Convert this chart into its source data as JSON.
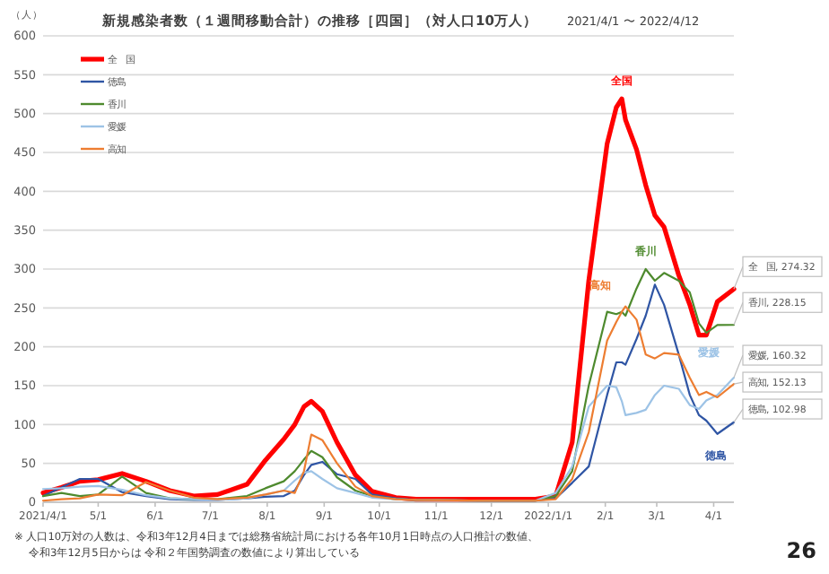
{
  "chart_data": {
    "type": "line",
    "title": "新規感染者数（１週間移動合計）の推移［四国］（対人口10万人）",
    "subtitle": "2021/4/1 〜 2022/4/12",
    "ylabel": "（人）",
    "x": [
      "2021-04-01",
      "2021-04-11",
      "2021-04-21",
      "2021-05-01",
      "2021-05-14",
      "2021-05-27",
      "2021-06-09",
      "2021-06-22",
      "2021-07-05",
      "2021-07-21",
      "2021-07-31",
      "2021-08-10",
      "2021-08-16",
      "2021-08-21",
      "2021-08-25",
      "2021-08-31",
      "2021-09-08",
      "2021-09-18",
      "2021-09-27",
      "2021-10-10",
      "2021-10-21",
      "2021-11-27",
      "2021-12-25",
      "2022-01-05",
      "2022-01-14",
      "2022-01-23",
      "2022-02-02",
      "2022-02-07",
      "2022-02-10",
      "2022-02-12",
      "2022-02-18",
      "2022-02-23",
      "2022-02-28",
      "2022-03-05",
      "2022-03-13",
      "2022-03-19",
      "2022-03-24",
      "2022-03-28",
      "2022-04-03",
      "2022-04-12"
    ],
    "xlim": [
      "2021-04-01",
      "2022-04-12"
    ],
    "xticks": [
      {
        "value": "2021-04-01",
        "label": "2021/4/1"
      },
      {
        "value": "2021-05-01",
        "label": "5/1"
      },
      {
        "value": "2021-06-01",
        "label": "6/1"
      },
      {
        "value": "2021-07-01",
        "label": "7/1"
      },
      {
        "value": "2021-08-01",
        "label": "8/1"
      },
      {
        "value": "2021-09-01",
        "label": "9/1"
      },
      {
        "value": "2021-10-01",
        "label": "10/1"
      },
      {
        "value": "2021-11-01",
        "label": "11/1"
      },
      {
        "value": "2021-12-01",
        "label": "12/1"
      },
      {
        "value": "2022-01-01",
        "label": "2022/1/1"
      },
      {
        "value": "2022-02-01",
        "label": "2/1"
      },
      {
        "value": "2022-03-01",
        "label": "3/1"
      },
      {
        "value": "2022-04-01",
        "label": "4/1"
      }
    ],
    "ylim": [
      0,
      600
    ],
    "yticks": [
      0,
      50,
      100,
      150,
      200,
      250,
      300,
      350,
      400,
      450,
      500,
      550,
      600
    ],
    "grid": "y",
    "legend": "top left",
    "series": [
      {
        "name": "全　国",
        "color": "#ff0000",
        "values": [
          12,
          19,
          27,
          29,
          37,
          27,
          15,
          8,
          10,
          23,
          54,
          81,
          100,
          123,
          130,
          117,
          77,
          35,
          14,
          6,
          4,
          4,
          4,
          8,
          77,
          285,
          461,
          508,
          519,
          492,
          454,
          408,
          369,
          354,
          292,
          254,
          215,
          215,
          258,
          274.32
        ],
        "value_labels": [
          null,
          null,
          null,
          null,
          null,
          null,
          null,
          null,
          null,
          null,
          null,
          null,
          null,
          null,
          null,
          null,
          null,
          null,
          null,
          null,
          null,
          null,
          null,
          null,
          null,
          null,
          null,
          null,
          null,
          null,
          null,
          null,
          null,
          null,
          null,
          null,
          null,
          null,
          null,
          "全　国, 274.32"
        ]
      },
      {
        "name": "徳島",
        "color": "#2f55a4",
        "values": [
          8,
          19,
          30,
          30,
          13,
          8,
          4,
          3,
          3,
          5,
          7,
          8,
          15,
          35,
          48,
          52,
          36,
          30,
          10,
          5,
          3,
          2,
          2,
          5,
          25,
          46,
          138,
          180,
          180,
          177,
          210,
          240,
          280,
          254,
          190,
          138,
          112,
          105,
          88,
          102.98
        ],
        "value_labels": [
          null,
          null,
          null,
          null,
          null,
          null,
          null,
          null,
          null,
          null,
          null,
          null,
          null,
          null,
          null,
          null,
          null,
          null,
          null,
          null,
          null,
          null,
          null,
          null,
          null,
          null,
          null,
          null,
          null,
          null,
          null,
          null,
          null,
          null,
          null,
          null,
          null,
          null,
          null,
          "徳島, 102.98"
        ]
      },
      {
        "name": "香川",
        "color": "#4e8a2e",
        "values": [
          8,
          12,
          8,
          10,
          33,
          12,
          5,
          4,
          4,
          8,
          18,
          27,
          40,
          55,
          66,
          58,
          32,
          15,
          8,
          4,
          3,
          2,
          2,
          8,
          40,
          150,
          245,
          242,
          245,
          240,
          275,
          300,
          285,
          295,
          285,
          270,
          230,
          218,
          228,
          228.15
        ],
        "value_labels": [
          null,
          null,
          null,
          null,
          null,
          null,
          null,
          null,
          null,
          null,
          null,
          null,
          null,
          null,
          null,
          null,
          null,
          null,
          null,
          null,
          null,
          null,
          null,
          null,
          null,
          null,
          null,
          null,
          null,
          null,
          null,
          null,
          null,
          null,
          null,
          null,
          null,
          null,
          null,
          "香川, 228.15"
        ]
      },
      {
        "name": "愛媛",
        "color": "#9dc3e6",
        "values": [
          17,
          18,
          20,
          21,
          16,
          9,
          5,
          4,
          3,
          5,
          10,
          15,
          28,
          38,
          40,
          30,
          18,
          12,
          6,
          4,
          3,
          2,
          2,
          12,
          46,
          123,
          150,
          148,
          130,
          112,
          115,
          119,
          138,
          150,
          146,
          125,
          120,
          131,
          138,
          160.32
        ],
        "value_labels": [
          null,
          null,
          null,
          null,
          null,
          null,
          null,
          null,
          null,
          null,
          null,
          null,
          null,
          null,
          null,
          null,
          null,
          null,
          null,
          null,
          null,
          null,
          null,
          null,
          null,
          null,
          null,
          null,
          null,
          null,
          null,
          null,
          null,
          null,
          null,
          null,
          null,
          null,
          null,
          "愛媛, 160.32"
        ]
      },
      {
        "name": "高知",
        "color": "#ed7d31",
        "values": [
          2,
          4,
          5,
          10,
          9,
          26,
          15,
          6,
          4,
          6,
          10,
          15,
          12,
          40,
          87,
          80,
          50,
          20,
          8,
          4,
          3,
          2,
          2,
          4,
          30,
          90,
          208,
          232,
          245,
          252,
          235,
          190,
          185,
          192,
          190,
          160,
          138,
          142,
          135,
          152.13
        ],
        "value_labels": [
          null,
          null,
          null,
          null,
          null,
          null,
          null,
          null,
          null,
          null,
          null,
          null,
          null,
          null,
          null,
          null,
          null,
          null,
          null,
          null,
          null,
          null,
          null,
          null,
          null,
          null,
          null,
          null,
          null,
          null,
          null,
          null,
          null,
          null,
          null,
          null,
          null,
          null,
          null,
          "高知, 152.13"
        ]
      }
    ],
    "annotations": [
      "全国",
      "香川",
      "高知",
      "愛媛",
      "徳島",
      "※ 人口10万対の人数は、令和3年12月4日までは総務省統計局における各年10月1日時点の人口推計の数値、",
      "令和3年12月5日からは 令和２年国勢調査の数値により算出している",
      "26"
    ]
  }
}
